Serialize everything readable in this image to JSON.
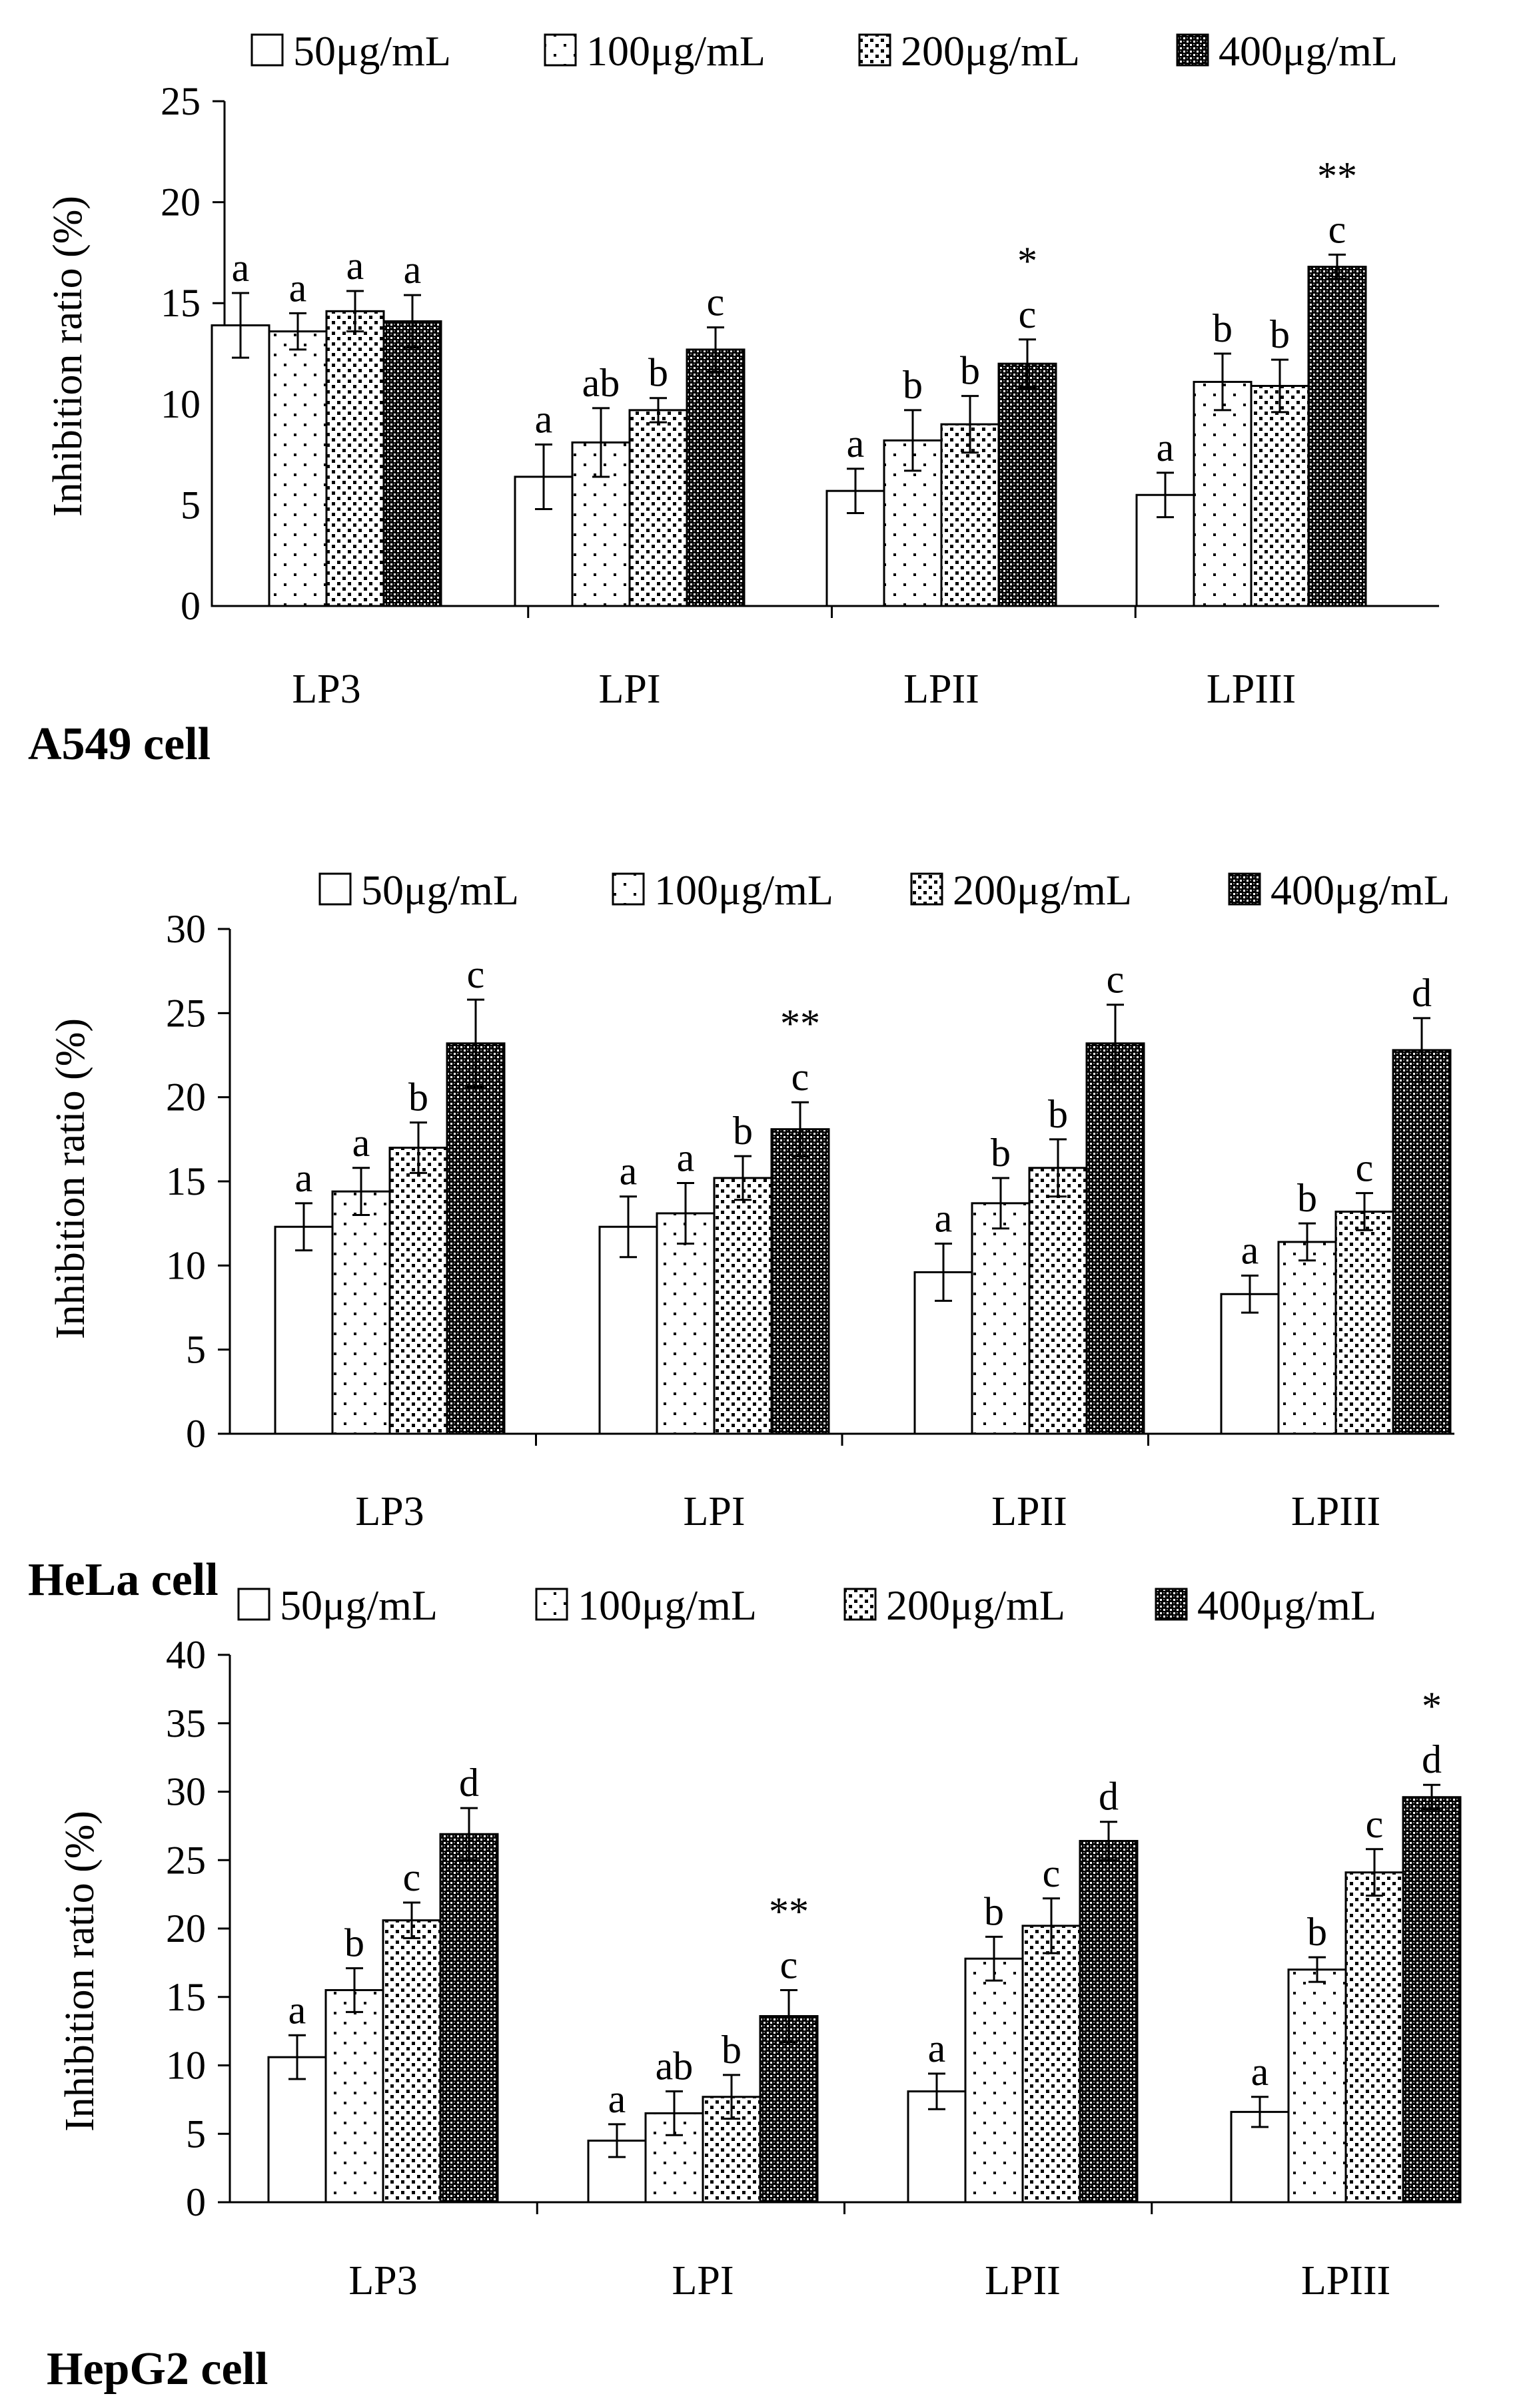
{
  "legend": [
    "50μg/mL",
    "100μg/mL",
    "200μg/mL",
    "400μg/mL"
  ],
  "chart_data": [
    {
      "type": "bar",
      "panel_label": "A549 cell",
      "ylabel": "Inhibition ratio (%)",
      "ylim": [
        0,
        25
      ],
      "yticks": [
        0,
        5,
        10,
        15,
        20,
        25
      ],
      "categories": [
        "LP3",
        "LPI",
        "LPII",
        "LPIII"
      ],
      "series": [
        {
          "name": "50μg/mL",
          "values": [
            13.9,
            6.4,
            5.7,
            5.5
          ],
          "errors": [
            1.6,
            1.6,
            1.1,
            1.1
          ],
          "letters": [
            "a",
            "a",
            "a",
            "a"
          ]
        },
        {
          "name": "100μg/mL",
          "values": [
            13.6,
            8.1,
            8.2,
            11.1
          ],
          "errors": [
            0.9,
            1.7,
            1.5,
            1.4
          ],
          "letters": [
            "a",
            "ab",
            "b",
            "b"
          ]
        },
        {
          "name": "200μg/mL",
          "values": [
            14.6,
            9.7,
            9.0,
            10.9
          ],
          "errors": [
            1.0,
            0.6,
            1.4,
            1.3
          ],
          "letters": [
            "a",
            "b",
            "b",
            "b"
          ]
        },
        {
          "name": "400μg/mL",
          "values": [
            14.1,
            12.7,
            12.0,
            16.8
          ],
          "errors": [
            1.3,
            1.1,
            1.2,
            0.6
          ],
          "letters": [
            "a",
            "c",
            "c",
            "c"
          ]
        }
      ],
      "significance": [
        "",
        "",
        "*",
        "**"
      ]
    },
    {
      "type": "bar",
      "panel_label": "HeLa cell",
      "ylabel": "Inhibition ratio (%)",
      "ylim": [
        0,
        30
      ],
      "yticks": [
        0,
        5,
        10,
        15,
        20,
        25,
        30
      ],
      "categories": [
        "LP3",
        "LPI",
        "LPII",
        "LPIII"
      ],
      "series": [
        {
          "name": "50μg/mL",
          "values": [
            12.3,
            12.3,
            9.6,
            8.3
          ],
          "errors": [
            1.4,
            1.8,
            1.7,
            1.1
          ],
          "letters": [
            "a",
            "a",
            "a",
            "a"
          ]
        },
        {
          "name": "100μg/mL",
          "values": [
            14.4,
            13.1,
            13.7,
            11.4
          ],
          "errors": [
            1.4,
            1.8,
            1.5,
            1.1
          ],
          "letters": [
            "a",
            "a",
            "b",
            "b"
          ]
        },
        {
          "name": "200μg/mL",
          "values": [
            17.0,
            15.2,
            15.8,
            13.2
          ],
          "errors": [
            1.5,
            1.3,
            1.7,
            1.1
          ],
          "letters": [
            "b",
            "b",
            "b",
            "c"
          ]
        },
        {
          "name": "400μg/mL",
          "values": [
            23.2,
            18.1,
            23.2,
            22.8
          ],
          "errors": [
            2.6,
            1.6,
            2.3,
            1.9
          ],
          "letters": [
            "c",
            "c",
            "c",
            "d"
          ]
        }
      ],
      "significance": [
        "",
        "**",
        "",
        ""
      ]
    },
    {
      "type": "bar",
      "panel_label": "HepG2 cell",
      "ylabel": "Inhibition ratio (%)",
      "ylim": [
        0,
        40
      ],
      "yticks": [
        0,
        5,
        10,
        15,
        20,
        25,
        30,
        35,
        40
      ],
      "categories": [
        "LP3",
        "LPI",
        "LPII",
        "LPIII"
      ],
      "series": [
        {
          "name": "50μg/mL",
          "values": [
            10.6,
            4.5,
            8.1,
            6.6
          ],
          "errors": [
            1.6,
            1.2,
            1.3,
            1.1
          ],
          "letters": [
            "a",
            "a",
            "a",
            "a"
          ]
        },
        {
          "name": "100μg/mL",
          "values": [
            15.5,
            6.5,
            17.8,
            17.0
          ],
          "errors": [
            1.6,
            1.6,
            1.6,
            0.9
          ],
          "letters": [
            "b",
            "ab",
            "b",
            "b"
          ]
        },
        {
          "name": "200μg/mL",
          "values": [
            20.6,
            7.7,
            20.2,
            24.1
          ],
          "errors": [
            1.3,
            1.6,
            2.0,
            1.7
          ],
          "letters": [
            "c",
            "b",
            "c",
            "c"
          ]
        },
        {
          "name": "400μg/mL",
          "values": [
            26.9,
            13.6,
            26.4,
            29.6
          ],
          "errors": [
            1.9,
            1.9,
            1.4,
            0.9
          ],
          "letters": [
            "d",
            "c",
            "d",
            "d"
          ]
        }
      ],
      "significance": [
        "",
        "**",
        "",
        "*"
      ]
    }
  ]
}
